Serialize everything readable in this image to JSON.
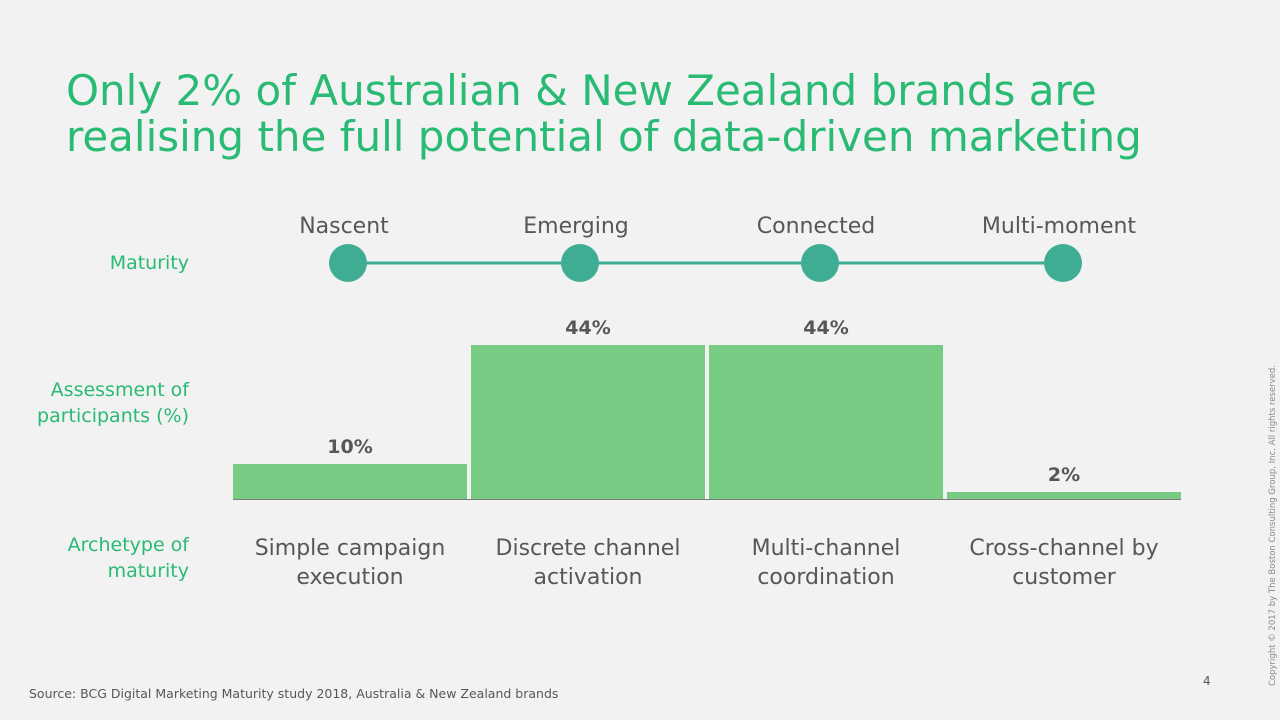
{
  "title": {
    "line1": "Only 2% of Australian & New Zealand brands are",
    "line2": "realising the full potential of data-driven marketing"
  },
  "row_labels": {
    "maturity": "Maturity",
    "assessment_line1": "Assessment of",
    "assessment_line2": "participants (%)",
    "archetype_line1": "Archetype of",
    "archetype_line2": "maturity"
  },
  "chart_data": {
    "type": "bar",
    "stages": [
      "Nascent",
      "Emerging",
      "Connected",
      "Multi-moment"
    ],
    "categories": [
      [
        "Simple campaign",
        "execution"
      ],
      [
        "Discrete channel",
        "activation"
      ],
      [
        "Multi-channel",
        "coordination"
      ],
      [
        "Cross-channel by",
        "customer"
      ]
    ],
    "values": [
      10,
      44,
      44,
      2
    ],
    "value_labels": [
      "10%",
      "44%",
      "44%",
      "2%"
    ],
    "unit": "%",
    "bar_color": "#78cb82",
    "marker_color": "#3fad93",
    "line_color": "#3fad93",
    "grid": false
  },
  "source": "Source: BCG Digital Marketing Maturity study 2018, Australia & New Zealand brands",
  "page_number": "4",
  "copyright": "Copyright © 2017 by The Boston Consulting Group, Inc. All rights reserved."
}
